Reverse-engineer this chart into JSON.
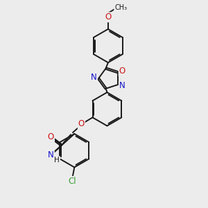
{
  "bg_color": "#ececec",
  "bond_color": "#1a1a1a",
  "bond_width": 1.4,
  "atom_colors": {
    "C": "#1a1a1a",
    "N": "#1414cc",
    "O": "#cc1414",
    "Cl": "#3a9e3a",
    "H": "#1a1a1a"
  },
  "font_size": 7.5,
  "xlim": [
    0,
    10
  ],
  "ylim": [
    0,
    10
  ]
}
